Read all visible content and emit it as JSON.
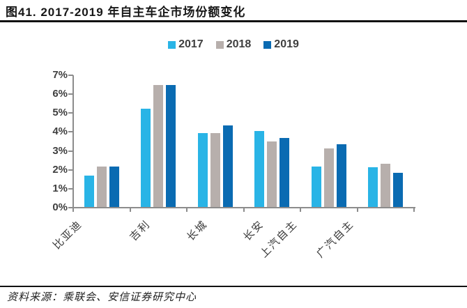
{
  "title": "图41. 2017-2019 年自主车企市场份额变化",
  "source": "资料来源：乘联会、安信证券研究中心",
  "colors": {
    "axis": "#8C8C8C",
    "text": "#3F3F3F",
    "rule": "#111111",
    "series_2017": "#29B4E6",
    "series_2018": "#B7AFAC",
    "series_2019": "#0A6BB2"
  },
  "chart_data": {
    "type": "bar",
    "title": "2017-2019 年自主车企市场份额变化",
    "categories": [
      "比亚迪",
      "吉利",
      "长城",
      "长安",
      "上汽自主",
      "广汽自主"
    ],
    "series": [
      {
        "name": "2017",
        "color": "#29B4E6",
        "values": [
          1.65,
          5.2,
          3.9,
          4.0,
          2.15,
          2.1
        ]
      },
      {
        "name": "2018",
        "color": "#B7AFAC",
        "values": [
          2.15,
          6.45,
          3.9,
          3.45,
          3.1,
          2.3
        ]
      },
      {
        "name": "2019",
        "color": "#0A6BB2",
        "values": [
          2.15,
          6.45,
          4.3,
          3.65,
          3.3,
          1.8
        ]
      }
    ],
    "xlabel": "",
    "ylabel": "",
    "ylim": [
      0,
      7
    ],
    "y_ticks": [
      "0%",
      "1%",
      "2%",
      "3%",
      "4%",
      "5%",
      "6%",
      "7%"
    ],
    "grid": false,
    "legend_position": "top-center"
  }
}
